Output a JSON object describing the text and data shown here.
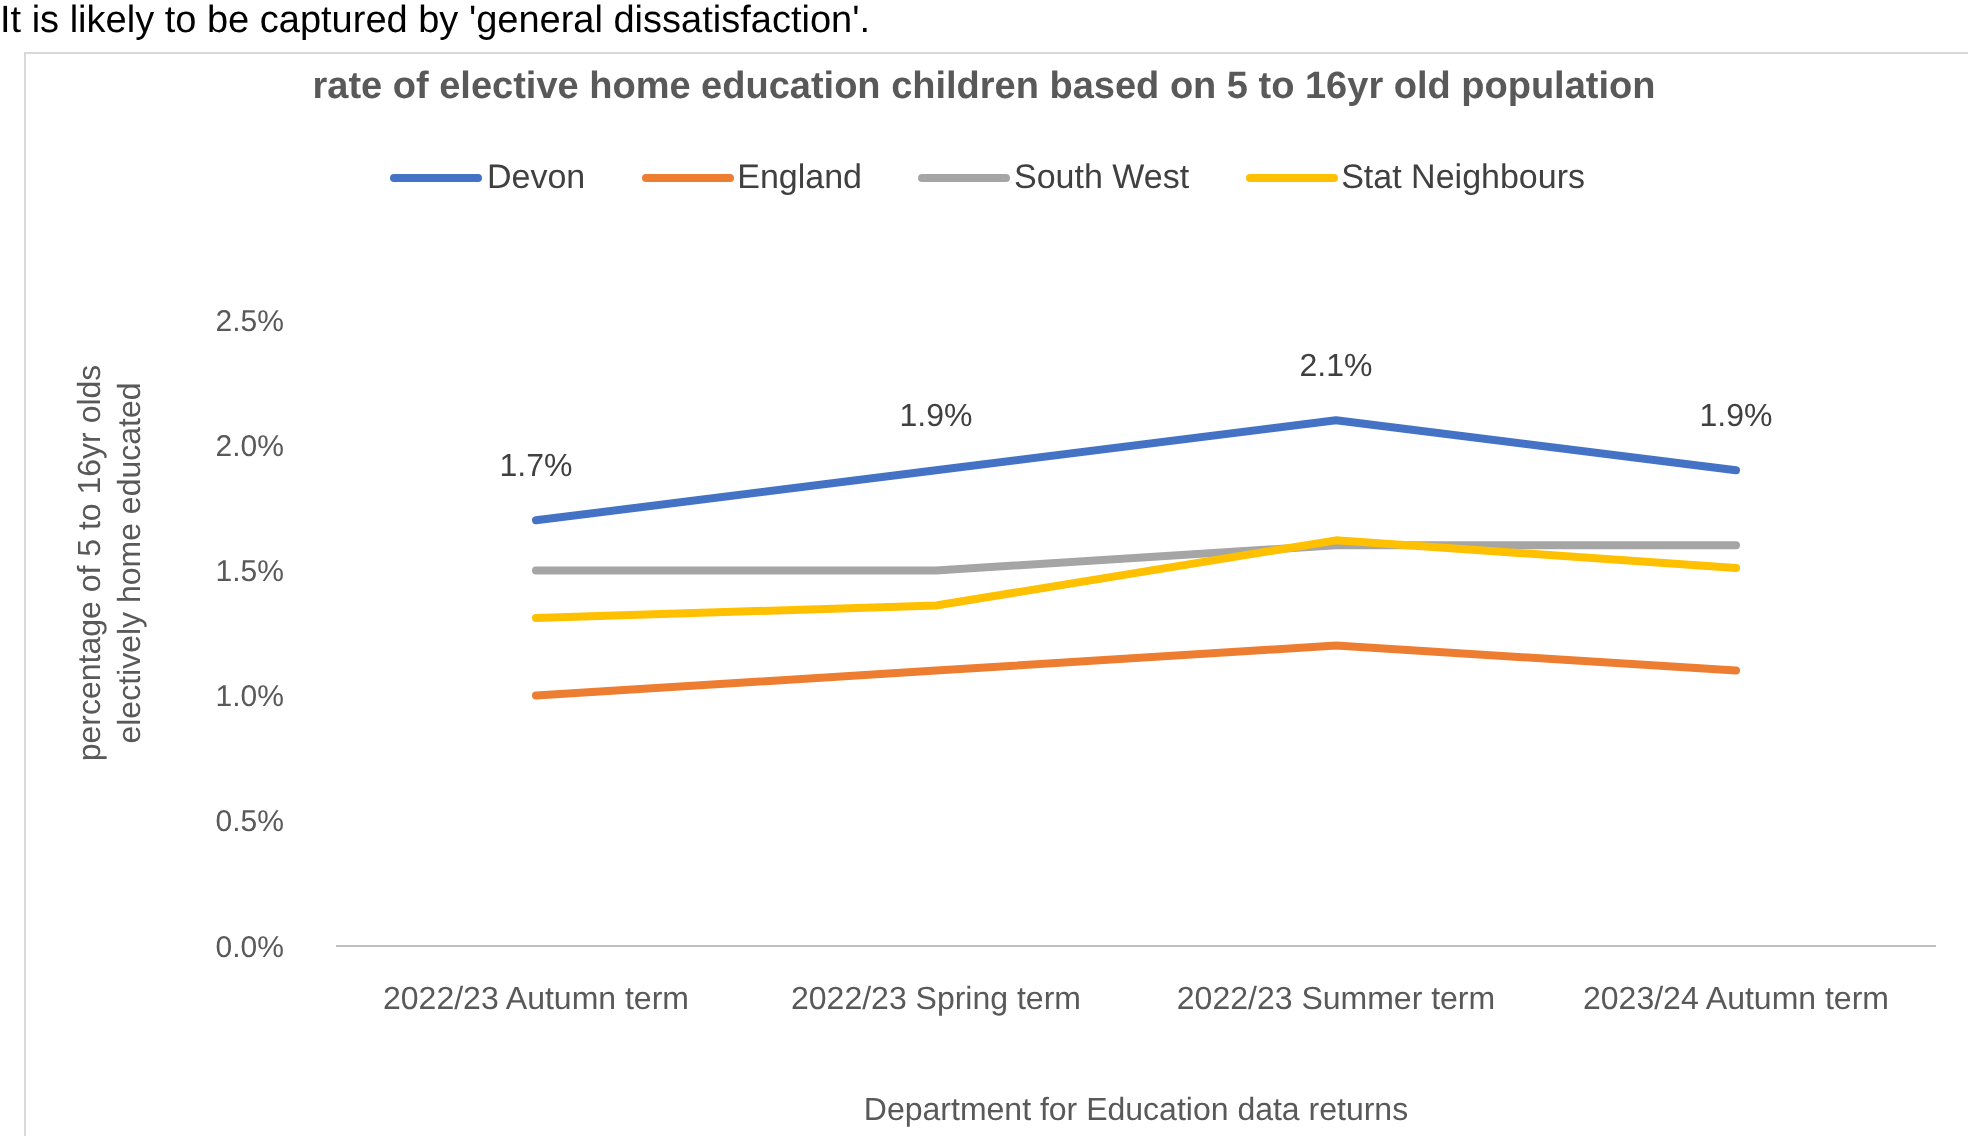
{
  "chart_data": {
    "type": "line",
    "title": "rate of elective home education children based on 5 to 16yr old population",
    "annotations": [
      "It is likely to be captured by 'general dissatisfaction'."
    ],
    "xlabel": "Department for Education data returns",
    "ylabel": "percentage of 5 to 16yr olds electively home educated",
    "categories": [
      "2022/23 Autumn term",
      "2022/23 Spring term",
      "2022/23 Summer term",
      "2023/24 Autumn term"
    ],
    "series": [
      {
        "name": "Devon",
        "color": "#4472c4",
        "values": [
          1.7,
          1.9,
          2.1,
          1.9
        ],
        "value_labels": [
          "1.7%",
          "1.9%",
          "2.1%",
          "1.9%"
        ]
      },
      {
        "name": "England",
        "color": "#ed7d31",
        "values": [
          1.0,
          1.1,
          1.2,
          1.1
        ]
      },
      {
        "name": "South West",
        "color": "#a5a5a5",
        "values": [
          1.5,
          1.5,
          1.6,
          1.6
        ]
      },
      {
        "name": "Stat Neighbours",
        "color": "#ffc000",
        "values": [
          1.31,
          1.36,
          1.62,
          1.51
        ]
      }
    ],
    "ylim": [
      0,
      2.5
    ],
    "yticks": [
      {
        "value": 0,
        "label": "0.0%"
      },
      {
        "value": 0.5,
        "label": "0.5%"
      },
      {
        "value": 1,
        "label": "1.0%"
      },
      {
        "value": 1.5,
        "label": "1.5%"
      },
      {
        "value": 2,
        "label": "2.0%"
      },
      {
        "value": 2.5,
        "label": "2.5%"
      }
    ],
    "grid": false,
    "legend": "top",
    "marker": "none",
    "line_style": "solid"
  }
}
